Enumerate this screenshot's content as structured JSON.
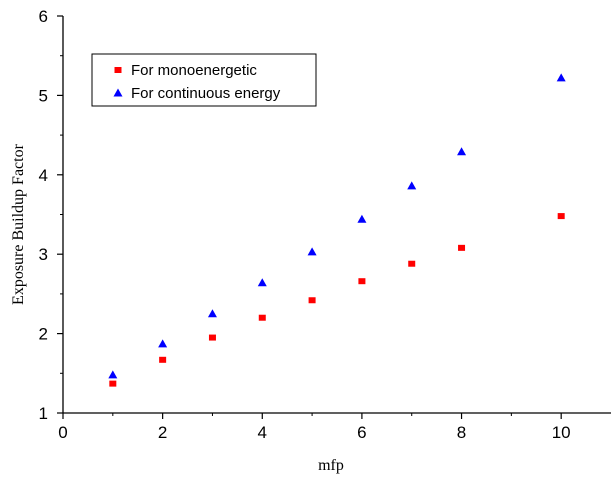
{
  "chart_data": {
    "type": "scatter",
    "title": "",
    "xlabel": "mfp",
    "ylabel": "Exposure Buildup Factor",
    "xlim": [
      0,
      11
    ],
    "ylim": [
      1,
      6
    ],
    "x_ticks": [
      0,
      2,
      4,
      6,
      8,
      10
    ],
    "y_ticks": [
      1,
      2,
      3,
      4,
      5,
      6
    ],
    "x_tick_labels": [
      "0",
      "2",
      "4",
      "6",
      "8",
      "10"
    ],
    "y_tick_labels": [
      "1",
      "2",
      "3",
      "4",
      "5",
      "6"
    ],
    "grid": false,
    "legend_position": "top-left",
    "series": [
      {
        "name": "For monoenergetic",
        "marker": "square",
        "color": "#ff0000",
        "points": [
          {
            "x": 1,
            "y": 1.37
          },
          {
            "x": 2,
            "y": 1.67
          },
          {
            "x": 3,
            "y": 1.95
          },
          {
            "x": 4,
            "y": 2.2
          },
          {
            "x": 5,
            "y": 2.42
          },
          {
            "x": 6,
            "y": 2.66
          },
          {
            "x": 7,
            "y": 2.88
          },
          {
            "x": 8,
            "y": 3.08
          },
          {
            "x": 10,
            "y": 3.48
          }
        ]
      },
      {
        "name": "For continuous energy",
        "marker": "triangle",
        "color": "#0000ff",
        "points": [
          {
            "x": 1,
            "y": 1.48
          },
          {
            "x": 2,
            "y": 1.87
          },
          {
            "x": 3,
            "y": 2.25
          },
          {
            "x": 4,
            "y": 2.64
          },
          {
            "x": 5,
            "y": 3.03
          },
          {
            "x": 6,
            "y": 3.44
          },
          {
            "x": 7,
            "y": 3.86
          },
          {
            "x": 8,
            "y": 4.29
          },
          {
            "x": 10,
            "y": 5.22
          }
        ]
      }
    ]
  }
}
